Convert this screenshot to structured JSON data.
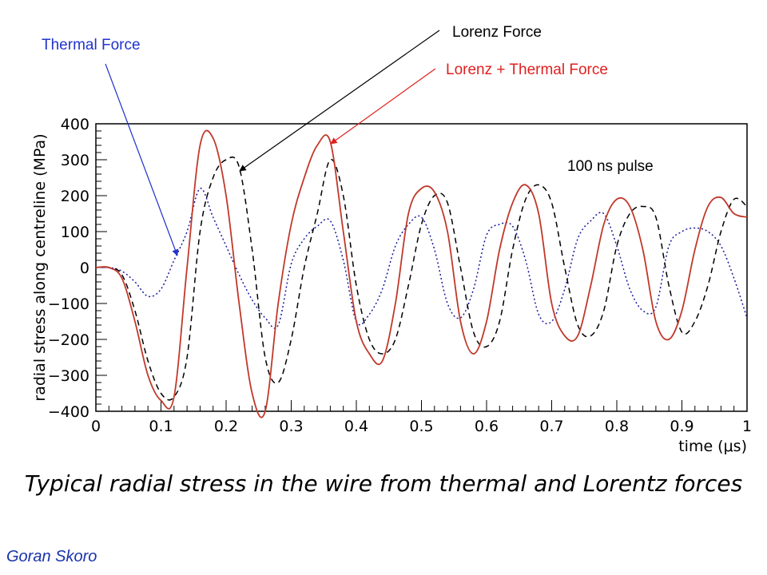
{
  "chart_data": {
    "type": "line",
    "xlabel": "time (μs)",
    "ylabel": "radial stress along centreline (MPa)",
    "xlim": [
      0,
      1
    ],
    "ylim": [
      -400,
      400
    ],
    "x_ticks": [
      0,
      0.1,
      0.2,
      0.3,
      0.4,
      0.5,
      0.6,
      0.7,
      0.8,
      0.9,
      1
    ],
    "x_tick_labels": [
      "0",
      "0.1",
      "0.2",
      "0.3",
      "0.4",
      "0.5",
      "0.6",
      "0.7",
      "0.8",
      "0.9",
      "1"
    ],
    "y_ticks": [
      -400,
      -300,
      -200,
      -100,
      0,
      100,
      200,
      300,
      400
    ],
    "y_tick_labels": [
      "−400",
      "−300",
      "−200",
      "−100",
      "0",
      "100",
      "200",
      "300",
      "400"
    ],
    "grid": false,
    "series": [
      {
        "name": "Thermal Force",
        "color": "#1a1aa0",
        "style": "dotted",
        "x": [
          0,
          0.02,
          0.04,
          0.06,
          0.08,
          0.1,
          0.12,
          0.14,
          0.16,
          0.18,
          0.2,
          0.22,
          0.24,
          0.26,
          0.28,
          0.3,
          0.32,
          0.34,
          0.36,
          0.38,
          0.4,
          0.42,
          0.44,
          0.46,
          0.48,
          0.5,
          0.52,
          0.54,
          0.56,
          0.58,
          0.6,
          0.62,
          0.64,
          0.66,
          0.68,
          0.7,
          0.72,
          0.74,
          0.76,
          0.78,
          0.8,
          0.82,
          0.84,
          0.86,
          0.88,
          0.9,
          0.92,
          0.94,
          0.96,
          0.98,
          1
        ],
        "values": [
          0,
          0,
          -10,
          -40,
          -80,
          -60,
          20,
          100,
          220,
          140,
          60,
          -20,
          -90,
          -140,
          -160,
          10,
          80,
          115,
          130,
          20,
          -150,
          -130,
          -60,
          60,
          120,
          140,
          50,
          -100,
          -140,
          -60,
          90,
          120,
          115,
          20,
          -130,
          -150,
          -60,
          80,
          130,
          150,
          60,
          -60,
          -120,
          -110,
          60,
          100,
          110,
          100,
          60,
          -30,
          -140
        ]
      },
      {
        "name": "Lorenz Force",
        "color": "#000000",
        "style": "dashed",
        "x": [
          0,
          0.02,
          0.04,
          0.06,
          0.08,
          0.1,
          0.12,
          0.14,
          0.16,
          0.18,
          0.2,
          0.22,
          0.24,
          0.26,
          0.28,
          0.3,
          0.32,
          0.34,
          0.36,
          0.38,
          0.4,
          0.42,
          0.44,
          0.46,
          0.48,
          0.5,
          0.52,
          0.54,
          0.56,
          0.58,
          0.6,
          0.62,
          0.64,
          0.66,
          0.68,
          0.7,
          0.72,
          0.74,
          0.76,
          0.78,
          0.8,
          0.82,
          0.84,
          0.86,
          0.88,
          0.9,
          0.92,
          0.94,
          0.96,
          0.98,
          1
        ],
        "values": [
          0,
          0,
          -20,
          -120,
          -260,
          -350,
          -360,
          -250,
          100,
          250,
          300,
          280,
          50,
          -250,
          -320,
          -200,
          0,
          150,
          300,
          200,
          -50,
          -200,
          -240,
          -200,
          -50,
          120,
          200,
          180,
          0,
          -180,
          -220,
          -150,
          50,
          190,
          230,
          180,
          0,
          -160,
          -190,
          -120,
          60,
          150,
          170,
          140,
          -50,
          -180,
          -150,
          -50,
          100,
          190,
          170
        ]
      },
      {
        "name": "Lorenz + Thermal Force",
        "color": "#c0392b",
        "style": "solid",
        "x": [
          0,
          0.02,
          0.04,
          0.06,
          0.08,
          0.1,
          0.12,
          0.14,
          0.16,
          0.18,
          0.2,
          0.22,
          0.24,
          0.26,
          0.28,
          0.3,
          0.32,
          0.34,
          0.36,
          0.38,
          0.4,
          0.42,
          0.44,
          0.46,
          0.48,
          0.5,
          0.52,
          0.54,
          0.56,
          0.58,
          0.6,
          0.62,
          0.64,
          0.66,
          0.68,
          0.7,
          0.72,
          0.74,
          0.76,
          0.78,
          0.8,
          0.82,
          0.84,
          0.86,
          0.88,
          0.9,
          0.92,
          0.94,
          0.96,
          0.98,
          1
        ],
        "values": [
          0,
          0,
          -30,
          -150,
          -300,
          -370,
          -360,
          0,
          340,
          360,
          200,
          -100,
          -350,
          -400,
          -100,
          120,
          250,
          340,
          350,
          100,
          -150,
          -240,
          -260,
          -100,
          150,
          220,
          210,
          100,
          -150,
          -240,
          -150,
          50,
          180,
          230,
          150,
          -100,
          -190,
          -190,
          -50,
          120,
          190,
          170,
          50,
          -150,
          -200,
          -120,
          50,
          170,
          195,
          150,
          140
        ]
      }
    ]
  },
  "annotations": {
    "thermal": "Thermal Force",
    "lorenz": "Lorenz Force",
    "lorenz_thermal": "Lorenz + Thermal Force",
    "pulse": "100 ns pulse"
  },
  "colors": {
    "thermal_label": "#2233cc",
    "lorenz_thermal_label": "#e02020",
    "author": "#1a33aa"
  },
  "caption": "Typical radial stress in the wire from thermal and Lorentz forces",
  "author": "Goran Skoro"
}
